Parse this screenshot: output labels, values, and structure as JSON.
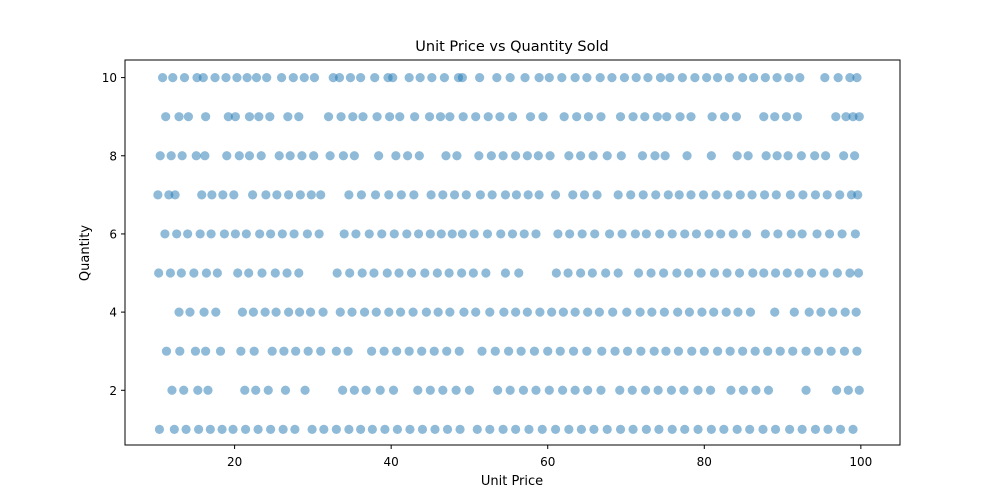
{
  "chart_data": {
    "type": "scatter",
    "title": "Unit Price vs Quantity Sold",
    "xlabel": "Unit Price",
    "ylabel": "Quantity",
    "xlim": [
      6,
      105
    ],
    "ylim": [
      0.6,
      10.45
    ],
    "xticks": [
      20,
      40,
      60,
      80,
      100
    ],
    "yticks": [
      2,
      4,
      6,
      8,
      10
    ],
    "grid": false,
    "marker_color": "#1f77b4",
    "marker_alpha": 0.5,
    "points_by_quantity": [
      {
        "y": 10,
        "x": [
          10.8,
          12.1,
          13.6,
          15.2,
          16.0,
          17.5,
          18.9,
          20.3,
          21.6,
          22.8,
          24.1,
          26.0,
          27.5,
          28.9,
          30.2,
          32.6,
          33.4,
          34.8,
          36.1,
          37.9,
          39.6,
          40.2,
          42.3,
          43.7,
          45.2,
          46.8,
          48.6,
          49.1,
          51.3,
          53.5,
          55.2,
          57.1,
          58.9,
          60.2,
          61.8,
          63.5,
          65.0,
          66.7,
          68.2,
          69.8,
          71.3,
          72.8,
          74.4,
          75.6,
          77.2,
          78.8,
          80.3,
          81.7,
          83.2,
          84.9,
          86.3,
          87.8,
          89.3,
          90.8,
          92.2,
          95.4,
          97.1,
          98.6,
          99.5
        ]
      },
      {
        "y": 9,
        "x": [
          11.2,
          12.9,
          14.1,
          16.3,
          19.2,
          20.1,
          21.9,
          23.1,
          24.5,
          26.8,
          28.2,
          32.0,
          33.6,
          35.1,
          36.4,
          38.2,
          39.8,
          41.1,
          43.0,
          44.9,
          46.3,
          47.5,
          49.2,
          50.8,
          52.4,
          53.9,
          55.5,
          57.8,
          59.4,
          62.1,
          63.7,
          65.2,
          66.8,
          69.3,
          70.9,
          72.4,
          74.0,
          75.2,
          76.9,
          78.3,
          81.0,
          82.6,
          84.1,
          87.6,
          89.0,
          90.5,
          91.9,
          96.8,
          98.1,
          99.0,
          99.8
        ]
      },
      {
        "y": 8,
        "x": [
          10.5,
          11.9,
          13.3,
          15.1,
          16.2,
          19.0,
          20.6,
          21.9,
          23.4,
          25.7,
          27.1,
          28.6,
          30.1,
          32.2,
          33.9,
          35.3,
          38.4,
          40.6,
          42.1,
          43.6,
          47.0,
          48.4,
          51.2,
          52.8,
          54.3,
          55.9,
          57.4,
          58.8,
          60.3,
          62.7,
          64.2,
          65.8,
          67.6,
          69.4,
          72.1,
          73.7,
          75.0,
          77.8,
          80.9,
          84.2,
          85.6,
          87.9,
          89.3,
          90.7,
          92.4,
          94.1,
          95.5,
          97.8,
          99.2
        ]
      },
      {
        "y": 7,
        "x": [
          10.2,
          11.6,
          12.4,
          15.8,
          17.1,
          18.5,
          19.9,
          22.3,
          24.0,
          25.4,
          26.9,
          28.4,
          29.8,
          31.0,
          34.6,
          36.2,
          38.0,
          39.7,
          41.3,
          42.9,
          45.1,
          46.6,
          48.1,
          49.6,
          51.4,
          52.9,
          54.6,
          56.0,
          57.5,
          58.9,
          61.0,
          63.2,
          64.7,
          66.3,
          69.0,
          70.6,
          72.2,
          73.8,
          75.4,
          76.8,
          78.3,
          79.9,
          81.5,
          83.0,
          84.6,
          86.1,
          87.7,
          89.2,
          91.0,
          92.6,
          94.2,
          95.7,
          97.3,
          98.8,
          99.6
        ]
      },
      {
        "y": 6,
        "x": [
          11.1,
          12.6,
          14.0,
          15.6,
          17.0,
          18.7,
          20.1,
          21.5,
          23.2,
          24.6,
          26.1,
          27.6,
          29.3,
          30.8,
          34.0,
          35.5,
          37.2,
          38.8,
          40.4,
          42.0,
          43.5,
          45.0,
          46.4,
          47.8,
          49.1,
          50.6,
          52.3,
          54.0,
          55.5,
          57.0,
          58.5,
          61.3,
          62.8,
          64.4,
          66.0,
          67.9,
          69.5,
          71.2,
          72.6,
          74.3,
          75.9,
          77.5,
          79.0,
          80.6,
          82.1,
          83.7,
          85.4,
          87.8,
          89.4,
          91.1,
          92.5,
          94.4,
          96.0,
          97.6,
          99.3
        ]
      },
      {
        "y": 5,
        "x": [
          10.3,
          11.8,
          13.2,
          14.8,
          16.4,
          17.8,
          20.4,
          21.8,
          23.5,
          25.2,
          26.7,
          28.2,
          33.1,
          34.7,
          36.3,
          37.8,
          39.5,
          41.0,
          42.6,
          44.3,
          45.9,
          47.4,
          49.0,
          50.5,
          52.1,
          54.6,
          56.3,
          61.1,
          62.6,
          64.2,
          65.7,
          67.4,
          69.0,
          71.6,
          73.2,
          74.8,
          76.5,
          78.0,
          79.6,
          81.3,
          82.9,
          84.5,
          86.2,
          87.6,
          89.1,
          90.6,
          92.1,
          93.7,
          95.3,
          97.0,
          98.6,
          99.7
        ]
      },
      {
        "y": 4,
        "x": [
          12.9,
          14.3,
          16.1,
          17.6,
          21.0,
          22.4,
          23.9,
          25.3,
          26.9,
          28.3,
          29.7,
          31.3,
          33.5,
          35.0,
          36.6,
          38.1,
          39.7,
          41.2,
          42.8,
          44.5,
          46.0,
          47.5,
          49.3,
          50.8,
          52.6,
          54.4,
          55.9,
          57.4,
          59.0,
          60.5,
          62.0,
          63.5,
          65.1,
          66.6,
          68.3,
          70.1,
          71.8,
          73.3,
          74.9,
          76.6,
          78.1,
          79.7,
          81.2,
          82.8,
          84.3,
          85.9,
          89.0,
          91.5,
          93.4,
          94.9,
          96.4,
          98.0,
          99.4
        ]
      },
      {
        "y": 3,
        "x": [
          11.3,
          13.0,
          15.0,
          16.3,
          18.2,
          20.8,
          22.5,
          24.8,
          26.3,
          27.8,
          29.4,
          31.0,
          33.0,
          34.5,
          37.5,
          39.1,
          40.7,
          42.3,
          43.9,
          45.5,
          47.1,
          48.7,
          51.6,
          53.3,
          55.0,
          56.6,
          58.3,
          60.0,
          61.6,
          63.3,
          65.0,
          66.9,
          68.6,
          70.2,
          71.9,
          73.6,
          75.1,
          76.7,
          78.4,
          80.0,
          81.7,
          83.3,
          84.9,
          86.5,
          88.1,
          89.7,
          91.3,
          93.0,
          94.6,
          96.2,
          97.9,
          99.5
        ]
      },
      {
        "y": 2,
        "x": [
          12.0,
          13.5,
          15.3,
          16.6,
          21.3,
          22.7,
          24.3,
          26.5,
          29.0,
          33.8,
          35.3,
          36.8,
          38.6,
          40.3,
          43.4,
          45.0,
          46.6,
          48.3,
          50.0,
          53.6,
          55.2,
          56.9,
          58.5,
          60.2,
          61.9,
          63.5,
          65.1,
          66.8,
          69.2,
          70.8,
          72.5,
          74.1,
          75.8,
          77.4,
          79.2,
          80.8,
          83.4,
          85.0,
          86.6,
          88.2,
          93.0,
          96.9,
          98.4,
          99.8
        ]
      },
      {
        "y": 1,
        "x": [
          10.4,
          12.3,
          13.8,
          15.4,
          16.9,
          18.4,
          19.8,
          21.4,
          23.0,
          24.6,
          26.2,
          27.7,
          29.9,
          31.4,
          33.0,
          34.6,
          36.1,
          37.6,
          39.2,
          40.8,
          42.4,
          44.0,
          45.6,
          47.2,
          48.8,
          51.0,
          52.6,
          54.3,
          55.9,
          57.6,
          59.3,
          61.0,
          62.7,
          64.3,
          65.9,
          67.6,
          69.3,
          70.9,
          72.6,
          74.2,
          75.9,
          77.5,
          79.2,
          80.9,
          82.5,
          84.2,
          85.8,
          87.5,
          89.1,
          90.9,
          92.5,
          94.2,
          95.8,
          97.4,
          99.0
        ]
      }
    ]
  }
}
